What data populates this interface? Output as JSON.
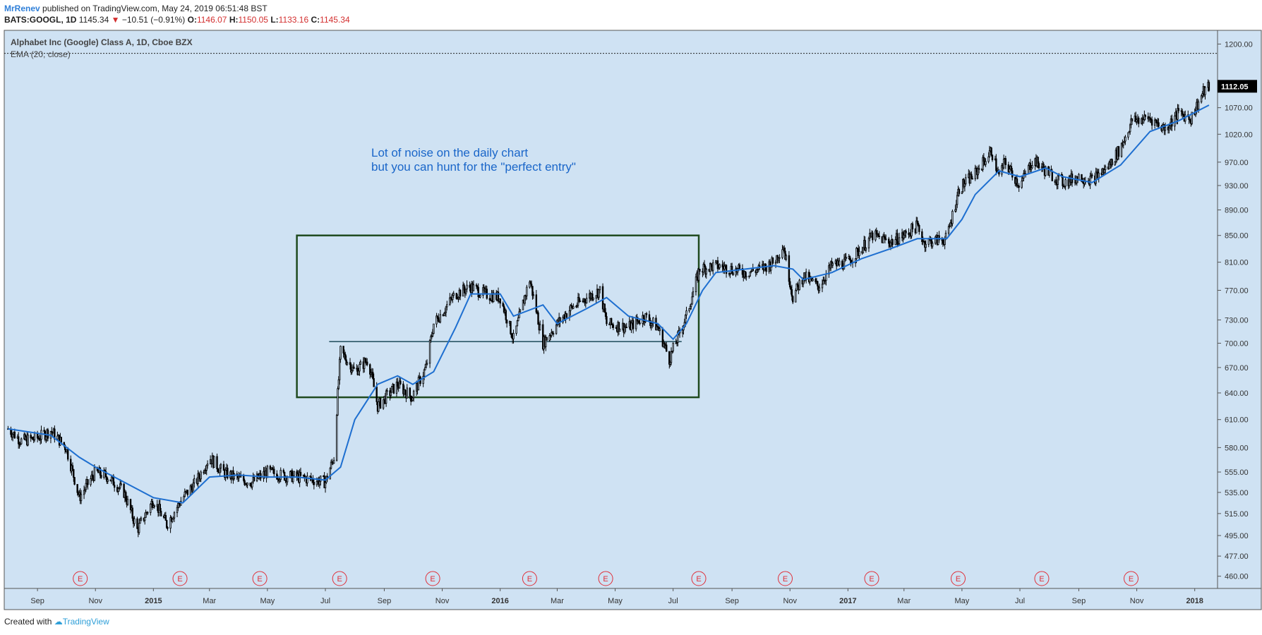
{
  "header": {
    "author": "MrRenev",
    "published": "published on TradingView.com, May 24, 2019 06:51:48 BST",
    "symbol": "BATS:GOOGL, 1D",
    "last": "1145.34",
    "change_arrow": "▼",
    "change": "−10.51 (−0.91%)",
    "open_label": "O:",
    "open": "1146.07",
    "high_label": "H:",
    "high": "1150.05",
    "low_label": "L:",
    "low": "1133.16",
    "close_label": "C:",
    "close": "1145.34"
  },
  "legend": {
    "title": "Alphabet Inc (Google) Class A, 1D, Cboe BZX",
    "indicator": "EMA (20, close)"
  },
  "annotation": {
    "line1": "Lot of noise on the daily chart",
    "line2": "but you can hunt for the \"perfect entry\""
  },
  "price_badge": "1112.05",
  "earnings_marker": "E",
  "footer": {
    "created": "Created with",
    "brand": "TradingView"
  },
  "colors": {
    "background": "#cfe2f3",
    "candles": "#000000",
    "ema": "#1e6fd0",
    "box": "#1f4a1f",
    "support_line": "#1d4a5a",
    "annotation_text": "#1a66c9",
    "earnings": "#e0303a"
  },
  "chart_data": {
    "type": "candlestick",
    "series": [
      {
        "name": "GOOGL",
        "points": [
          [
            "2014-08-01",
            600
          ],
          [
            "2014-08-15",
            587
          ],
          [
            "2014-09-01",
            590
          ],
          [
            "2014-09-15",
            598
          ],
          [
            "2014-10-01",
            580
          ],
          [
            "2014-10-15",
            530
          ],
          [
            "2014-11-01",
            555
          ],
          [
            "2014-11-15",
            550
          ],
          [
            "2014-12-01",
            535
          ],
          [
            "2014-12-15",
            500
          ],
          [
            "2015-01-01",
            528
          ],
          [
            "2015-01-15",
            505
          ],
          [
            "2015-02-01",
            530
          ],
          [
            "2015-02-15",
            545
          ],
          [
            "2015-03-01",
            570
          ],
          [
            "2015-03-15",
            555
          ],
          [
            "2015-04-01",
            548
          ],
          [
            "2015-04-15",
            545
          ],
          [
            "2015-05-01",
            555
          ],
          [
            "2015-05-15",
            552
          ],
          [
            "2015-06-01",
            550
          ],
          [
            "2015-06-15",
            548
          ],
          [
            "2015-07-01",
            545
          ],
          [
            "2015-07-10",
            570
          ],
          [
            "2015-07-17",
            690
          ],
          [
            "2015-08-01",
            665
          ],
          [
            "2015-08-15",
            680
          ],
          [
            "2015-08-25",
            625
          ],
          [
            "2015-09-15",
            650
          ],
          [
            "2015-09-30",
            635
          ],
          [
            "2015-10-15",
            670
          ],
          [
            "2015-10-23",
            725
          ],
          [
            "2015-11-01",
            740
          ],
          [
            "2015-11-15",
            765
          ],
          [
            "2015-12-01",
            775
          ],
          [
            "2015-12-15",
            765
          ],
          [
            "2016-01-01",
            760
          ],
          [
            "2016-01-15",
            705
          ],
          [
            "2016-02-01",
            785
          ],
          [
            "2016-02-15",
            700
          ],
          [
            "2016-03-01",
            725
          ],
          [
            "2016-03-15",
            745
          ],
          [
            "2016-04-01",
            760
          ],
          [
            "2016-04-15",
            770
          ],
          [
            "2016-04-22",
            725
          ],
          [
            "2016-05-15",
            720
          ],
          [
            "2016-06-01",
            735
          ],
          [
            "2016-06-15",
            720
          ],
          [
            "2016-06-27",
            680
          ],
          [
            "2016-07-15",
            735
          ],
          [
            "2016-07-29",
            800
          ],
          [
            "2016-08-15",
            805
          ],
          [
            "2016-09-01",
            800
          ],
          [
            "2016-09-15",
            795
          ],
          [
            "2016-10-01",
            800
          ],
          [
            "2016-10-15",
            810
          ],
          [
            "2016-10-25",
            835
          ],
          [
            "2016-11-04",
            760
          ],
          [
            "2016-11-15",
            790
          ],
          [
            "2016-12-01",
            775
          ],
          [
            "2016-12-15",
            805
          ],
          [
            "2017-01-01",
            810
          ],
          [
            "2017-01-15",
            830
          ],
          [
            "2017-01-27",
            850
          ],
          [
            "2017-02-15",
            840
          ],
          [
            "2017-03-01",
            850
          ],
          [
            "2017-03-15",
            865
          ],
          [
            "2017-03-22",
            840
          ],
          [
            "2017-04-15",
            845
          ],
          [
            "2017-04-28",
            925
          ],
          [
            "2017-05-15",
            950
          ],
          [
            "2017-06-01",
            990
          ],
          [
            "2017-06-09",
            945
          ],
          [
            "2017-06-15",
            970
          ],
          [
            "2017-07-01",
            930
          ],
          [
            "2017-07-15",
            975
          ],
          [
            "2017-07-28",
            955
          ],
          [
            "2017-08-15",
            935
          ],
          [
            "2017-09-01",
            945
          ],
          [
            "2017-09-15",
            940
          ],
          [
            "2017-10-01",
            960
          ],
          [
            "2017-10-15",
            995
          ],
          [
            "2017-10-27",
            1045
          ],
          [
            "2017-11-15",
            1050
          ],
          [
            "2017-12-01",
            1030
          ],
          [
            "2017-12-15",
            1060
          ],
          [
            "2017-12-28",
            1050
          ],
          [
            "2018-01-10",
            1100
          ],
          [
            "2018-01-16",
            1112.05
          ]
        ]
      },
      {
        "name": "EMA (20, close)",
        "points": [
          [
            "2014-08-01",
            600
          ],
          [
            "2014-09-15",
            593
          ],
          [
            "2014-10-15",
            570
          ],
          [
            "2014-11-01",
            560
          ],
          [
            "2014-12-01",
            545
          ],
          [
            "2015-01-01",
            530
          ],
          [
            "2015-02-01",
            525
          ],
          [
            "2015-03-01",
            550
          ],
          [
            "2015-04-01",
            552
          ],
          [
            "2015-05-01",
            550
          ],
          [
            "2015-06-01",
            550
          ],
          [
            "2015-07-01",
            547
          ],
          [
            "2015-07-17",
            560
          ],
          [
            "2015-08-01",
            610
          ],
          [
            "2015-08-25",
            650
          ],
          [
            "2015-09-15",
            660
          ],
          [
            "2015-10-01",
            650
          ],
          [
            "2015-10-23",
            665
          ],
          [
            "2015-11-15",
            720
          ],
          [
            "2015-12-01",
            765
          ],
          [
            "2016-01-01",
            765
          ],
          [
            "2016-01-15",
            735
          ],
          [
            "2016-02-15",
            750
          ],
          [
            "2016-03-01",
            725
          ],
          [
            "2016-04-01",
            745
          ],
          [
            "2016-04-22",
            760
          ],
          [
            "2016-05-15",
            735
          ],
          [
            "2016-06-15",
            725
          ],
          [
            "2016-07-01",
            705
          ],
          [
            "2016-07-15",
            725
          ],
          [
            "2016-08-01",
            770
          ],
          [
            "2016-08-15",
            795
          ],
          [
            "2016-09-15",
            800
          ],
          [
            "2016-10-15",
            805
          ],
          [
            "2016-11-04",
            800
          ],
          [
            "2016-11-15",
            785
          ],
          [
            "2016-12-15",
            795
          ],
          [
            "2017-01-15",
            815
          ],
          [
            "2017-02-15",
            830
          ],
          [
            "2017-03-15",
            845
          ],
          [
            "2017-04-15",
            845
          ],
          [
            "2017-05-01",
            875
          ],
          [
            "2017-05-15",
            915
          ],
          [
            "2017-06-09",
            955
          ],
          [
            "2017-07-01",
            945
          ],
          [
            "2017-07-28",
            960
          ],
          [
            "2017-08-15",
            945
          ],
          [
            "2017-09-15",
            935
          ],
          [
            "2017-10-15",
            965
          ],
          [
            "2017-11-15",
            1025
          ],
          [
            "2017-12-15",
            1045
          ],
          [
            "2018-01-16",
            1075
          ]
        ]
      }
    ],
    "y_ticks": [
      "460.00",
      "477.00",
      "495.00",
      "515.00",
      "535.00",
      "555.00",
      "580.00",
      "610.00",
      "640.00",
      "670.00",
      "700.00",
      "730.00",
      "770.00",
      "810.00",
      "850.00",
      "890.00",
      "930.00",
      "970.00",
      "1020.00",
      "1070.00",
      "1200.00"
    ],
    "x_ticks": [
      {
        "label": "Sep",
        "date": "2014-09-01"
      },
      {
        "label": "Nov",
        "date": "2014-11-01"
      },
      {
        "label": "2015",
        "date": "2015-01-01"
      },
      {
        "label": "Mar",
        "date": "2015-03-01"
      },
      {
        "label": "May",
        "date": "2015-05-01"
      },
      {
        "label": "Jul",
        "date": "2015-07-01"
      },
      {
        "label": "Sep",
        "date": "2015-09-01"
      },
      {
        "label": "Nov",
        "date": "2015-11-01"
      },
      {
        "label": "2016",
        "date": "2016-01-01"
      },
      {
        "label": "Mar",
        "date": "2016-03-01"
      },
      {
        "label": "May",
        "date": "2016-05-01"
      },
      {
        "label": "Jul",
        "date": "2016-07-01"
      },
      {
        "label": "Sep",
        "date": "2016-09-01"
      },
      {
        "label": "Nov",
        "date": "2016-11-01"
      },
      {
        "label": "2017",
        "date": "2017-01-01"
      },
      {
        "label": "Mar",
        "date": "2017-03-01"
      },
      {
        "label": "May",
        "date": "2017-05-01"
      },
      {
        "label": "Jul",
        "date": "2017-07-01"
      },
      {
        "label": "Sep",
        "date": "2017-09-01"
      },
      {
        "label": "Nov",
        "date": "2017-11-01"
      },
      {
        "label": "2018",
        "date": "2018-01-01"
      }
    ],
    "earnings_dates": [
      "2014-10-16",
      "2015-01-29",
      "2015-04-23",
      "2015-07-16",
      "2015-10-22",
      "2016-02-01",
      "2016-04-21",
      "2016-07-28",
      "2016-10-27",
      "2017-01-26",
      "2017-04-27",
      "2017-07-24",
      "2017-10-26"
    ],
    "y_scale": "log",
    "ylim": [
      450,
      1230
    ],
    "xlim": [
      "2014-07-28",
      "2018-01-25"
    ],
    "dotted_level": 1180,
    "range_box": {
      "x0": "2015-06-01",
      "x1": "2016-07-28",
      "y0": 635,
      "y1": 850
    },
    "support_level": {
      "x0": "2015-07-05",
      "x1": "2016-07-10",
      "y": 702
    },
    "grid": false
  }
}
